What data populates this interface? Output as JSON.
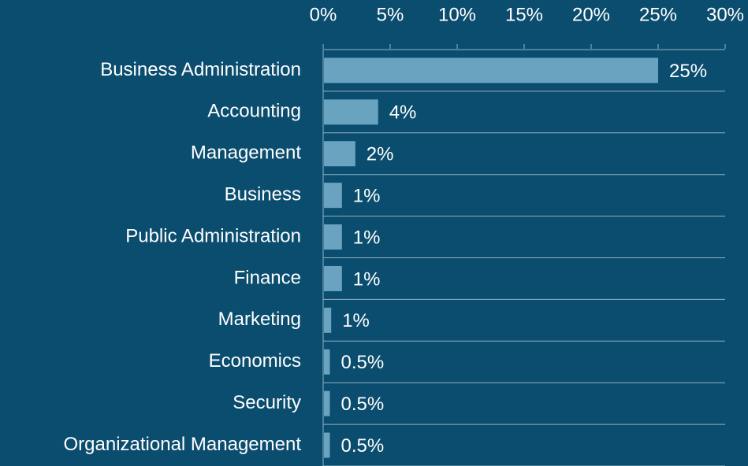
{
  "chart_data": {
    "type": "barh",
    "categories": [
      "Business Administration",
      "Accounting",
      "Management",
      "Business",
      "Public Administration",
      "Finance",
      "Marketing",
      "Economics",
      "Security",
      "Organizational Management"
    ],
    "values": [
      25,
      4.1,
      2.4,
      1.4,
      1.4,
      1.4,
      0.6,
      0.5,
      0.5,
      0.5
    ],
    "value_labels": [
      "25%",
      "4%",
      "2%",
      "1%",
      "1%",
      "1%",
      "1%",
      "0.5%",
      "0.5%",
      "0.5%"
    ],
    "color": "#6aa3bf",
    "xlim": [
      0,
      30
    ],
    "xticks": [
      {
        "value": 0,
        "label": "0%"
      },
      {
        "value": 5,
        "label": "5%"
      },
      {
        "value": 10,
        "label": "10%"
      },
      {
        "value": 15,
        "label": "15%"
      },
      {
        "value": 20,
        "label": "20%"
      },
      {
        "value": 25,
        "label": "25%"
      },
      {
        "value": 30,
        "label": "30%"
      }
    ]
  }
}
